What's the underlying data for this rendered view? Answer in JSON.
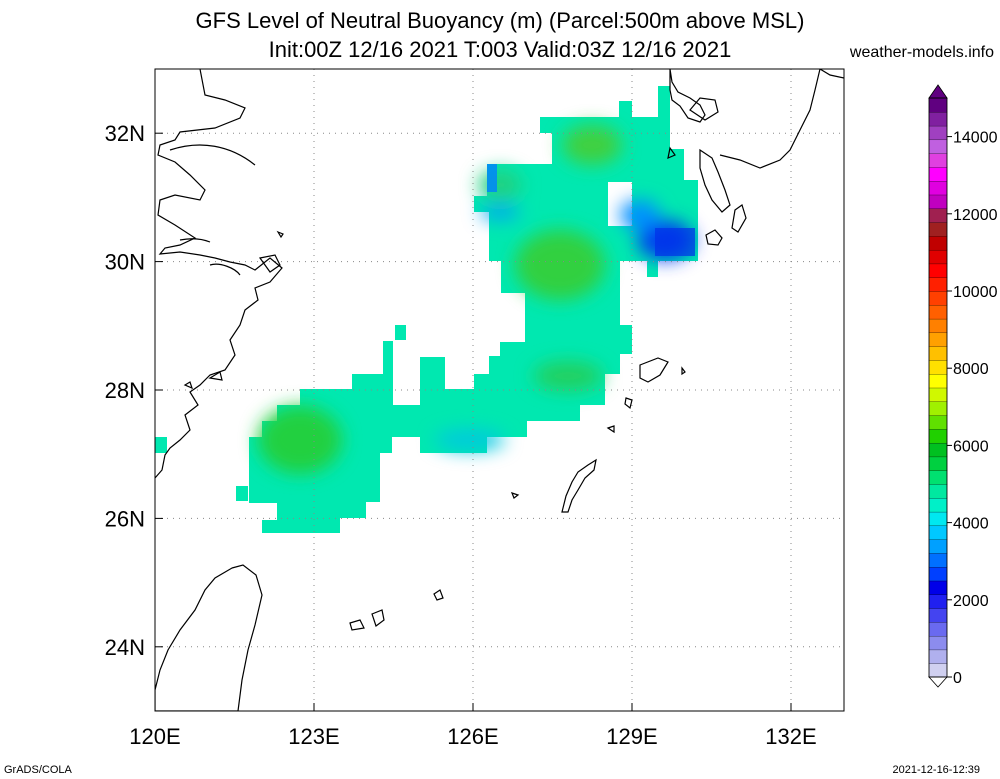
{
  "title": {
    "line1": "GFS Level of Neutral Buoyancy (m) (Parcel:500m above MSL)",
    "line2": "Init:00Z 12/16 2021 T:003 Valid:03Z 12/16 2021"
  },
  "site": "weather-models.info",
  "footer": {
    "left": "GrADS/COLA",
    "right": "2021-12-16-12:39"
  },
  "map": {
    "lon_range": [
      120,
      133
    ],
    "lat_range": [
      23,
      33
    ],
    "lon_ticks": [
      "120E",
      "123E",
      "126E",
      "129E",
      "132E"
    ],
    "lat_ticks": [
      "32N",
      "30N",
      "28N",
      "26N",
      "24N"
    ],
    "grid": "dotted",
    "colorbar_labels": [
      "14000",
      "12000",
      "10000",
      "8000",
      "6000",
      "4000",
      "2000",
      "0"
    ],
    "colorbar_range": [
      0,
      15000
    ],
    "palette": [
      "#d0d0f0",
      "#b0b0ee",
      "#8c8cee",
      "#6a6af0",
      "#4444f0",
      "#2020f0",
      "#0000e8",
      "#0040ff",
      "#0070ff",
      "#00a0ff",
      "#00c8ff",
      "#00e8f0",
      "#00f0c8",
      "#00e8a0",
      "#00e070",
      "#00d040",
      "#00c020",
      "#20d000",
      "#60e000",
      "#a0f000",
      "#d0f800",
      "#ffff00",
      "#ffe000",
      "#ffc000",
      "#ffa000",
      "#ff8000",
      "#ff6000",
      "#ff4000",
      "#ff2000",
      "#ff0000",
      "#e00000",
      "#c00000",
      "#a02020",
      "#a02050",
      "#c000c0",
      "#e000e0",
      "#ff00ff",
      "#e040e0",
      "#c060e0",
      "#a040c0",
      "#8020a0",
      "#600080"
    ]
  }
}
